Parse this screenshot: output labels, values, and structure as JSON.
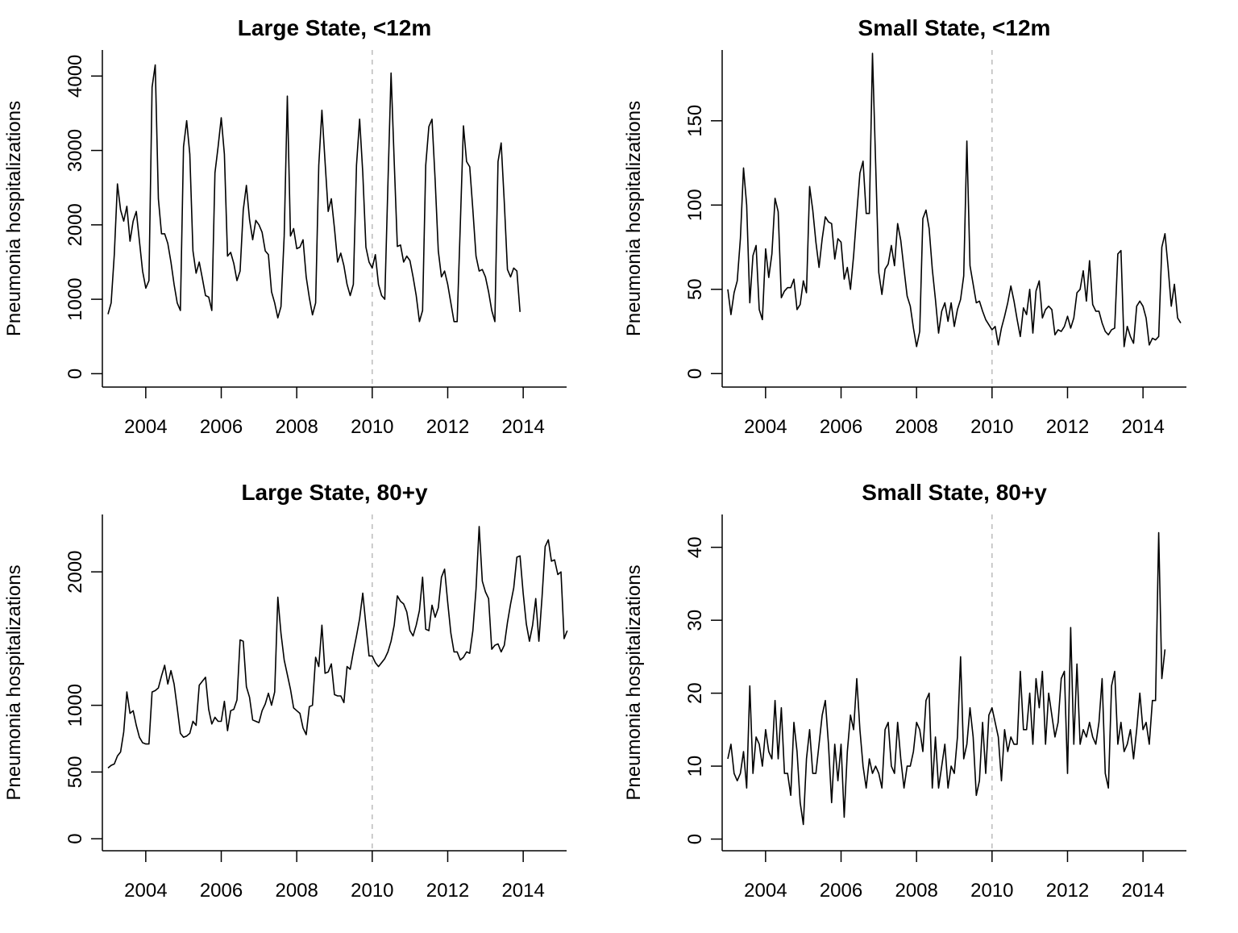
{
  "chart_data": [
    {
      "type": "line",
      "title": "Large State, <12m",
      "ylabel": "Pneumonia hospitalizations",
      "xlabel": "",
      "xlim": [
        2002.85,
        2015.15
      ],
      "ylim": [
        -180,
        4350
      ],
      "x_ticks": [
        "2004",
        "2006",
        "2008",
        "2010",
        "2012",
        "2014"
      ],
      "y_ticks": [
        "0",
        "1000",
        "2000",
        "3000",
        "4000"
      ],
      "vline": {
        "x": 2010,
        "style": "dashed",
        "color": "#bbbbbb"
      },
      "series": [
        {
          "x_start": 2003.0,
          "step": 0.08333,
          "values": [
            800,
            950,
            1600,
            2550,
            2200,
            2050,
            2250,
            1780,
            2050,
            2180,
            1780,
            1380,
            1150,
            1250,
            3850,
            4150,
            2350,
            1880,
            1880,
            1750,
            1500,
            1200,
            950,
            850,
            3050,
            3400,
            2950,
            1650,
            1350,
            1500,
            1280,
            1050,
            1030,
            850,
            2700,
            3050,
            3440,
            2950,
            1580,
            1630,
            1480,
            1250,
            1380,
            2200,
            2530,
            2070,
            1800,
            2060,
            2000,
            1900,
            1650,
            1600,
            1100,
            950,
            750,
            900,
            1850,
            3730,
            1850,
            1950,
            1680,
            1700,
            1800,
            1300,
            1020,
            790,
            950,
            2800,
            3540,
            2850,
            2180,
            2350,
            1950,
            1500,
            1620,
            1450,
            1200,
            1050,
            1200,
            2800,
            3420,
            2700,
            1700,
            1500,
            1420,
            1600,
            1200,
            1050,
            1000,
            2550,
            4040,
            2850,
            1710,
            1730,
            1500,
            1580,
            1520,
            1300,
            1050,
            700,
            850,
            2800,
            3320,
            3420,
            2600,
            1650,
            1300,
            1380,
            1200,
            950,
            700,
            700,
            2000,
            3330,
            2850,
            2780,
            2200,
            1580,
            1380,
            1400,
            1300,
            1100,
            850,
            700,
            2850,
            3100,
            2300,
            1400,
            1300,
            1420,
            1380,
            830
          ]
        }
      ]
    },
    {
      "type": "line",
      "title": "Small State, <12m",
      "ylabel": "Pneumonia hospitalizations",
      "xlabel": "",
      "xlim": [
        2002.85,
        2015.15
      ],
      "ylim": [
        -8,
        192
      ],
      "x_ticks": [
        "2004",
        "2006",
        "2008",
        "2010",
        "2012",
        "2014"
      ],
      "y_ticks": [
        "0",
        "50",
        "100",
        "150"
      ],
      "vline": {
        "x": 2010,
        "style": "dashed",
        "color": "#bbbbbb"
      },
      "series": [
        {
          "x_start": 2003.0,
          "step": 0.08333,
          "values": [
            50,
            35,
            48,
            55,
            80,
            122,
            100,
            42,
            70,
            76,
            38,
            32,
            74,
            57,
            71,
            104,
            96,
            45,
            49,
            51,
            51,
            56,
            38,
            41,
            55,
            48,
            111,
            97,
            78,
            63,
            80,
            93,
            90,
            89,
            68,
            80,
            78,
            56,
            63,
            50,
            70,
            95,
            119,
            126,
            95,
            95,
            190,
            125,
            60,
            47,
            62,
            65,
            76,
            64,
            89,
            79,
            62,
            46,
            40,
            27,
            16,
            25,
            92,
            97,
            86,
            62,
            44,
            24,
            37,
            42,
            31,
            42,
            28,
            38,
            44,
            58,
            138,
            64,
            53,
            42,
            43,
            37,
            32,
            29,
            26,
            28,
            17,
            27,
            34,
            42,
            52,
            43,
            32,
            22,
            39,
            35,
            50,
            24,
            49,
            55,
            33,
            38,
            40,
            38,
            23,
            26,
            25,
            28,
            34,
            27,
            33,
            48,
            50,
            61,
            43,
            67,
            41,
            37,
            37,
            30,
            25,
            23,
            26,
            27,
            71,
            73,
            16,
            28,
            22,
            18,
            40,
            43,
            40,
            33,
            17,
            21,
            20,
            22,
            75,
            83,
            63,
            40,
            53,
            33,
            30
          ]
        }
      ]
    },
    {
      "type": "line",
      "title": "Large State, 80+y",
      "ylabel": "Pneumonia hospitalizations",
      "xlabel": "",
      "xlim": [
        2002.85,
        2015.15
      ],
      "ylim": [
        -90,
        2430
      ],
      "x_ticks": [
        "2004",
        "2006",
        "2008",
        "2010",
        "2012",
        "2014"
      ],
      "y_ticks": [
        "0",
        "500",
        "1000",
        "2000"
      ],
      "vline": {
        "x": 2010,
        "style": "dashed",
        "color": "#bbbbbb"
      },
      "series": [
        {
          "x_start": 2003.0,
          "step": 0.08333,
          "values": [
            530,
            550,
            560,
            620,
            650,
            800,
            1100,
            940,
            960,
            850,
            760,
            720,
            710,
            710,
            1100,
            1110,
            1130,
            1220,
            1300,
            1160,
            1260,
            1160,
            980,
            790,
            760,
            770,
            790,
            880,
            850,
            1150,
            1180,
            1210,
            970,
            860,
            910,
            880,
            880,
            1030,
            810,
            960,
            970,
            1040,
            1490,
            1480,
            1140,
            1060,
            890,
            880,
            870,
            960,
            1010,
            1090,
            1000,
            1100,
            1810,
            1540,
            1340,
            1230,
            1120,
            980,
            960,
            940,
            830,
            780,
            990,
            1000,
            1360,
            1290,
            1600,
            1240,
            1250,
            1310,
            1080,
            1070,
            1070,
            1020,
            1290,
            1270,
            1400,
            1520,
            1650,
            1840,
            1600,
            1370,
            1370,
            1320,
            1290,
            1320,
            1350,
            1400,
            1480,
            1600,
            1820,
            1780,
            1760,
            1700,
            1560,
            1520,
            1600,
            1710,
            1960,
            1570,
            1560,
            1750,
            1660,
            1730,
            1960,
            2020,
            1770,
            1540,
            1400,
            1400,
            1340,
            1360,
            1400,
            1390,
            1560,
            1870,
            2340,
            1930,
            1850,
            1800,
            1420,
            1450,
            1460,
            1400,
            1450,
            1620,
            1760,
            1880,
            2110,
            2120,
            1840,
            1610,
            1480,
            1600,
            1800,
            1480,
            1810,
            2190,
            2240,
            2080,
            2090,
            1980,
            2000,
            1500,
            1560
          ]
        }
      ]
    },
    {
      "type": "line",
      "title": "Small State, 80+y",
      "ylabel": "Pneumonia hospitalizations",
      "xlabel": "",
      "xlim": [
        2002.85,
        2015.15
      ],
      "ylim": [
        -1.6,
        44.5
      ],
      "x_ticks": [
        "2004",
        "2006",
        "2008",
        "2010",
        "2012",
        "2014"
      ],
      "y_ticks": [
        "0",
        "10",
        "20",
        "30",
        "40"
      ],
      "vline": {
        "x": 2010,
        "style": "dashed",
        "color": "#bbbbbb"
      },
      "series": [
        {
          "x_start": 2003.0,
          "step": 0.08333,
          "values": [
            11,
            13,
            9,
            8,
            9,
            12,
            7,
            21,
            9,
            14,
            13,
            10,
            15,
            12,
            11,
            19,
            11,
            18,
            9,
            9,
            6,
            16,
            12,
            5,
            2,
            11,
            15,
            9,
            9,
            13,
            17,
            19,
            13,
            5,
            13,
            8,
            13,
            3,
            12,
            17,
            15,
            22,
            15,
            10,
            7,
            11,
            9,
            10,
            9,
            7,
            15,
            16,
            10,
            9,
            16,
            11,
            7,
            10,
            10,
            12,
            16,
            15,
            12,
            19,
            20,
            7,
            14,
            7,
            10,
            13,
            7,
            10,
            9,
            14,
            25,
            11,
            13,
            18,
            14,
            6,
            8,
            16,
            9,
            17,
            18,
            16,
            14,
            8,
            15,
            12,
            14,
            13,
            13,
            23,
            15,
            15,
            20,
            13,
            22,
            18,
            23,
            13,
            20,
            17,
            14,
            16,
            22,
            23,
            9,
            29,
            13,
            24,
            13,
            15,
            14,
            16,
            14,
            13,
            16,
            22,
            9,
            7,
            21,
            23,
            13,
            16,
            12,
            13,
            15,
            11,
            15,
            20,
            15,
            16,
            13,
            19,
            19,
            42,
            22,
            26
          ]
        }
      ]
    }
  ]
}
